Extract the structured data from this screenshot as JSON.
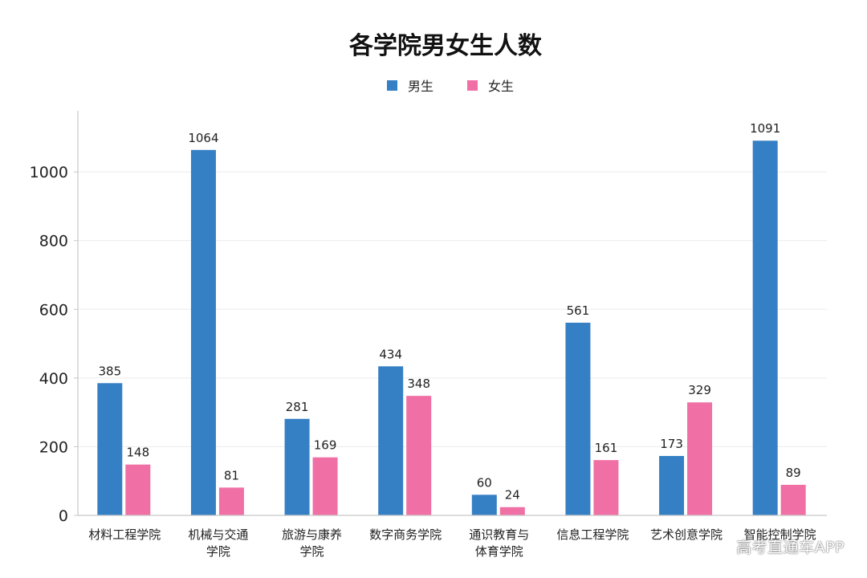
{
  "chart_data": {
    "type": "bar",
    "title": "各学院男女生人数",
    "categories": [
      [
        "材料工程学院"
      ],
      [
        "机械与交通",
        "学院"
      ],
      [
        "旅游与康养",
        "学院"
      ],
      [
        "数字商务学院"
      ],
      [
        "通识教育与",
        "体育学院"
      ],
      [
        "信息工程学院"
      ],
      [
        "艺术创意学院"
      ],
      [
        "智能控制学院"
      ]
    ],
    "series": [
      {
        "name": "男生",
        "color": "#3580c4",
        "values": [
          385,
          1064,
          281,
          434,
          60,
          561,
          173,
          1091
        ]
      },
      {
        "name": "女生",
        "color": "#f06fa5",
        "values": [
          148,
          81,
          169,
          348,
          24,
          161,
          329,
          89
        ]
      }
    ],
    "ylim": [
      0,
      1150
    ],
    "yticks": [
      0,
      200,
      400,
      600,
      800,
      1000
    ],
    "grid": true,
    "legend_position": "top-center"
  },
  "watermark": "高考直通车APP"
}
